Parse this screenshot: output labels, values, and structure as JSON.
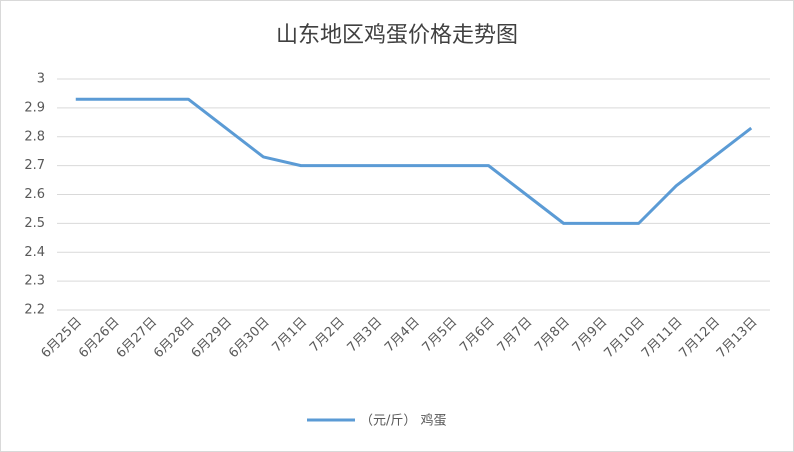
{
  "chart_data": {
    "type": "line",
    "title": "山东地区鸡蛋价格走势图",
    "categories": [
      "6月25日",
      "6月26日",
      "6月27日",
      "6月28日",
      "6月29日",
      "6月30日",
      "7月1日",
      "7月2日",
      "7月3日",
      "7月4日",
      "7月5日",
      "7月6日",
      "7月7日",
      "7月8日",
      "7月9日",
      "7月10日",
      "7月11日",
      "7月12日",
      "7月13日"
    ],
    "series": [
      {
        "name": "（元/斤） 鸡蛋",
        "color": "#5b9bd5",
        "values": [
          2.93,
          2.93,
          2.93,
          2.93,
          2.83,
          2.73,
          2.7,
          2.7,
          2.7,
          2.7,
          2.7,
          2.7,
          2.6,
          2.5,
          2.5,
          2.5,
          2.63,
          2.73,
          2.83
        ]
      }
    ],
    "ylim": [
      2.2,
      3
    ],
    "yticks": [
      2.2,
      2.3,
      2.4,
      2.5,
      2.6,
      2.7,
      2.8,
      2.9,
      3
    ],
    "grid": true,
    "legend": "bottom"
  }
}
